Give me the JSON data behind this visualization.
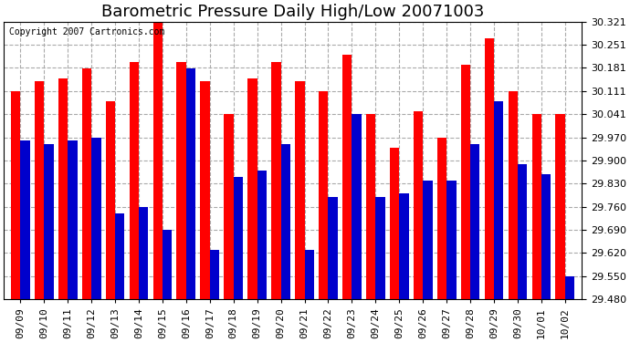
{
  "title": "Barometric Pressure Daily High/Low 20071003",
  "copyright": "Copyright 2007 Cartronics.com",
  "categories": [
    "09/09",
    "09/10",
    "09/11",
    "09/12",
    "09/13",
    "09/14",
    "09/15",
    "09/16",
    "09/17",
    "09/18",
    "09/19",
    "09/20",
    "09/21",
    "09/22",
    "09/23",
    "09/24",
    "09/25",
    "09/26",
    "09/27",
    "09/28",
    "09/29",
    "09/30",
    "10/01",
    "10/02"
  ],
  "highs": [
    30.11,
    30.14,
    30.15,
    30.18,
    30.08,
    30.2,
    30.32,
    30.2,
    30.14,
    30.04,
    30.15,
    30.2,
    30.14,
    30.11,
    30.22,
    30.04,
    29.94,
    30.05,
    29.97,
    30.19,
    30.27,
    30.11,
    30.04,
    30.04
  ],
  "lows": [
    29.96,
    29.95,
    29.96,
    29.97,
    29.74,
    29.76,
    29.69,
    30.18,
    29.63,
    29.85,
    29.87,
    29.95,
    29.63,
    29.79,
    30.04,
    29.79,
    29.8,
    29.84,
    29.84,
    29.95,
    30.08,
    29.89,
    29.86,
    29.55
  ],
  "bar_color_high": "#ff0000",
  "bar_color_low": "#0000cc",
  "background_color": "#ffffff",
  "plot_bg_color": "#ffffff",
  "grid_color": "#aaaaaa",
  "ylim_min": 29.48,
  "ylim_max": 30.321,
  "yticks": [
    29.48,
    29.55,
    29.62,
    29.69,
    29.76,
    29.83,
    29.9,
    29.97,
    30.041,
    30.111,
    30.181,
    30.251,
    30.321
  ],
  "title_fontsize": 13,
  "tick_fontsize": 8,
  "copyright_fontsize": 7
}
